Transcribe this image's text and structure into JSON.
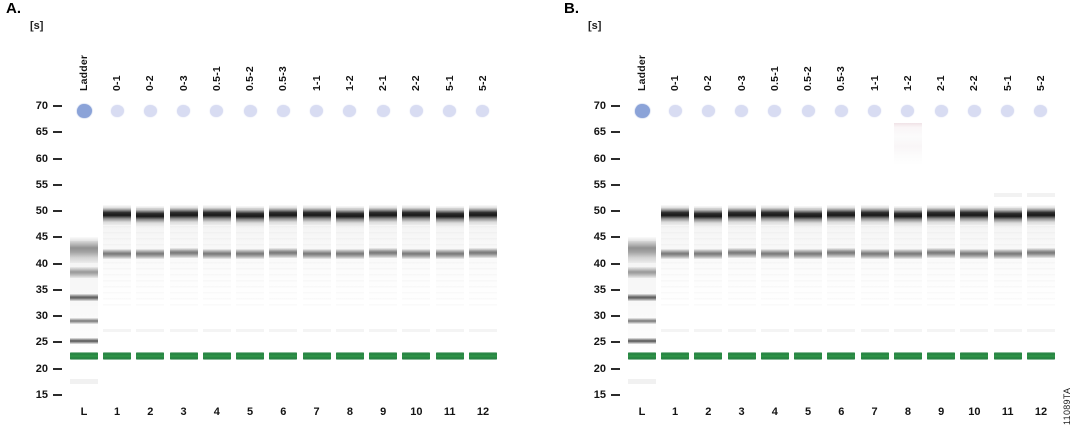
{
  "figure": {
    "side_label": "11089TA",
    "background": "#ffffff"
  },
  "colors": {
    "upper_marker_ladder": "#8ba3d8",
    "upper_marker_sample": "#d8dcf2",
    "lower_marker_green": "#2e9147",
    "band_dark": "#1a1a1a",
    "ladder_gray": "#6b6b6b",
    "text": "#141414"
  },
  "chart_data": [
    {
      "type": "heatmap",
      "subtype": "gel-electrophoresis-virtual-gel",
      "title": "A.",
      "ylabel": "[s]",
      "y_ticks": [
        70,
        65,
        60,
        55,
        50,
        45,
        40,
        35,
        30,
        25,
        20,
        15
      ],
      "y_range": [
        15,
        70
      ],
      "lanes": [
        "Ladder",
        "0-1",
        "0-2",
        "0-3",
        "0.5-1",
        "0.5-2",
        "0.5-3",
        "1-1",
        "1-2",
        "2-1",
        "2-2",
        "5-1",
        "5-2"
      ],
      "lane_numbers": [
        "L",
        "1",
        "2",
        "3",
        "4",
        "5",
        "6",
        "7",
        "8",
        "9",
        "10",
        "11",
        "12"
      ],
      "upper_marker_s": 69,
      "lower_marker_s": 22.5,
      "ladder_band_s": [
        42.5,
        38.3,
        33.5,
        29.0,
        25.3,
        22.5,
        17.5
      ],
      "sample_band_s": [
        49.2,
        41.9,
        22.5
      ],
      "sample_trace_s": 27.2
    },
    {
      "type": "heatmap",
      "subtype": "gel-electrophoresis-virtual-gel",
      "title": "B.",
      "ylabel": "[s]",
      "y_ticks": [
        70,
        65,
        60,
        55,
        50,
        45,
        40,
        35,
        30,
        25,
        20,
        15
      ],
      "y_range": [
        15,
        70
      ],
      "lanes": [
        "Ladder",
        "0-1",
        "0-2",
        "0-3",
        "0.5-1",
        "0.5-2",
        "0.5-3",
        "1-1",
        "1-2",
        "2-1",
        "2-2",
        "5-1",
        "5-2"
      ],
      "lane_numbers": [
        "L",
        "1",
        "2",
        "3",
        "4",
        "5",
        "6",
        "7",
        "8",
        "9",
        "10",
        "11",
        "12"
      ],
      "upper_marker_s": 69,
      "lower_marker_s": 22.5,
      "ladder_band_s": [
        42.5,
        38.3,
        33.5,
        29.0,
        25.3,
        22.5,
        17.5
      ],
      "sample_band_s": [
        49.2,
        41.9,
        22.5
      ],
      "sample_trace_s": 27.2,
      "artifact": {
        "lane": "1-2",
        "s_top": 66.8,
        "s_bottom": 58.5
      },
      "faint_upper_band": {
        "lanes": [
          "5-1",
          "5-2"
        ],
        "s": 53
      }
    }
  ]
}
